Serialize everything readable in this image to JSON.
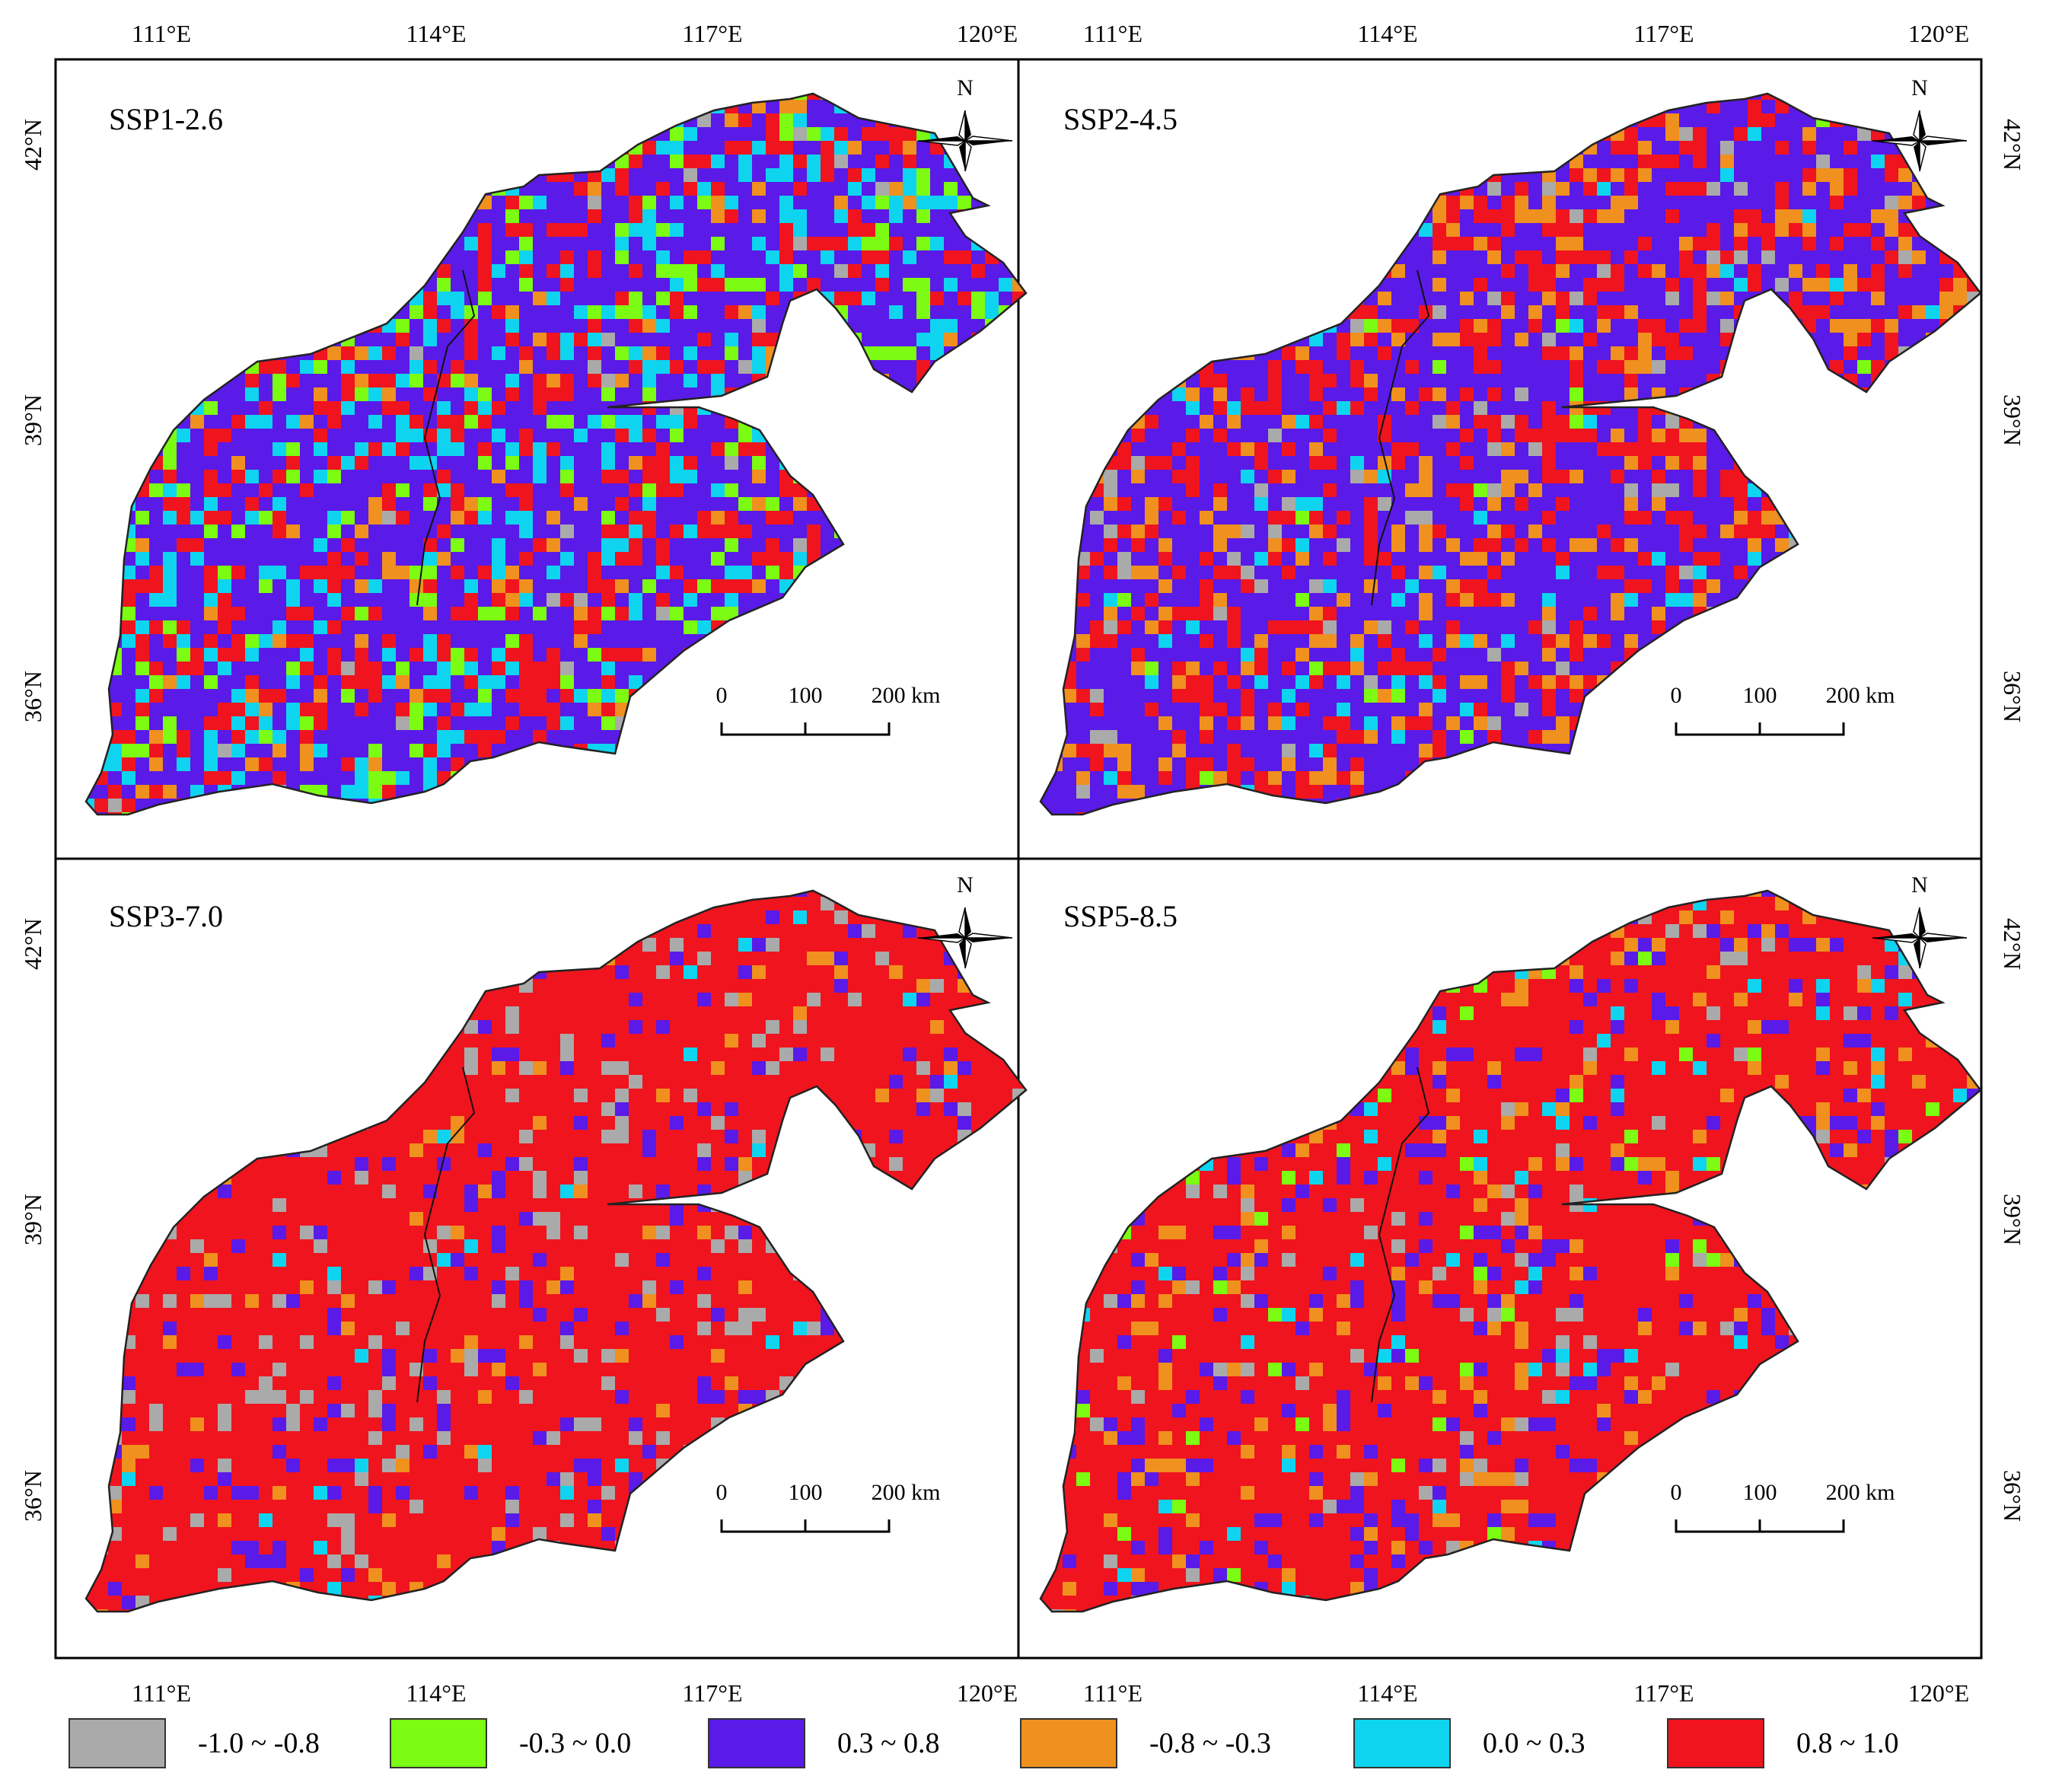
{
  "top_lon_labels": [
    "111°E",
    "114°E",
    "117°E",
    "120°E"
  ],
  "bottom_lon_labels": [
    "111°E",
    "114°E",
    "117°E",
    "120°E"
  ],
  "left_lat_labels_top": [
    "42°N",
    "39°N",
    "36°N"
  ],
  "left_lat_labels_bottom": [
    "42°N",
    "39°N",
    "36°N"
  ],
  "right_lat_labels_top": [
    "42°N",
    "39°N",
    "36°N"
  ],
  "right_lat_labels_bottom": [
    "42°N",
    "39°N",
    "36°N"
  ],
  "north_label": "N",
  "scale_bar": {
    "labels": [
      "0",
      "100",
      "200 km"
    ]
  },
  "panels": [
    {
      "title": "SSP1-2.6",
      "shares": {
        "c_gray": 0.01,
        "c_green": 0.09,
        "c_blue": 0.52,
        "c_orange": 0.04,
        "c_cyan": 0.12,
        "c_red": 0.22
      }
    },
    {
      "title": "SSP2-4.5",
      "shares": {
        "c_gray": 0.03,
        "c_green": 0.01,
        "c_blue": 0.55,
        "c_orange": 0.12,
        "c_cyan": 0.03,
        "c_red": 0.26
      }
    },
    {
      "title": "SSP3-7.0",
      "shares": {
        "c_gray": 0.08,
        "c_green": 0.0,
        "c_blue": 0.09,
        "c_orange": 0.03,
        "c_cyan": 0.01,
        "c_red": 0.79
      }
    },
    {
      "title": "SSP5-8.5",
      "shares": {
        "c_gray": 0.03,
        "c_green": 0.02,
        "c_blue": 0.12,
        "c_orange": 0.07,
        "c_cyan": 0.03,
        "c_red": 0.73
      }
    }
  ],
  "legend": [
    {
      "key": "c_gray",
      "label": "-1.0 ~ -0.8",
      "color": "#aaaaaa"
    },
    {
      "key": "c_green",
      "label": "-0.3 ~ 0.0",
      "color": "#7cfc12"
    },
    {
      "key": "c_blue",
      "label": "0.3 ~ 0.8",
      "color": "#5a1ae8"
    },
    {
      "key": "c_orange",
      "label": "-0.8 ~ -0.3",
      "color": "#f0901e"
    },
    {
      "key": "c_cyan",
      "label": "0.0 ~ 0.3",
      "color": "#0fd4f0"
    },
    {
      "key": "c_red",
      "label": "0.8 ~ 1.0",
      "color": "#f0141e"
    }
  ]
}
